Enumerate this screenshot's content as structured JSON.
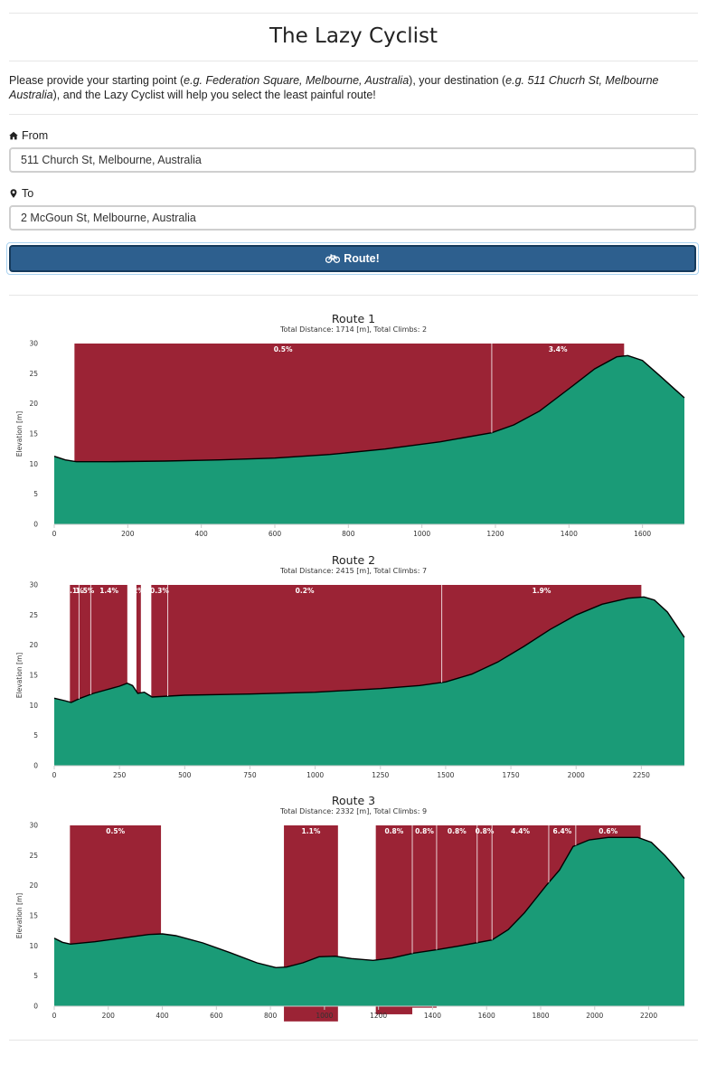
{
  "header": {
    "title": "The Lazy Cyclist"
  },
  "intro": {
    "p1": "Please provide your starting point (",
    "ex1": "e.g. Federation Square, Melbourne, Australia",
    "p2": "), your destination (",
    "ex2": "e.g. 511 Chucrh St, Melbourne Australia",
    "p3": "), and the Lazy Cyclist will help you select the least painful route!"
  },
  "form": {
    "from_label": "From",
    "from_value": "511 Church St, Melbourne, Australia",
    "to_label": "To",
    "to_value": "2 McGoun St, Melbourne, Australia",
    "route_label": "Route!"
  },
  "icons": {
    "from": "home-icon",
    "to": "map-marker-icon",
    "route": "bicycle-icon"
  },
  "colors": {
    "climb": "#9b2335",
    "terrain": "#1a9b77",
    "button": "#2d5f8e"
  },
  "chart_data": [
    {
      "type": "area",
      "title": "Route 1",
      "subtitle": "Total Distance: 1714 [m], Total Climbs: 2",
      "ylabel": "Elevation [m]",
      "xlim": [
        0,
        1714
      ],
      "ylim": [
        0,
        30
      ],
      "xticks": [
        0,
        200,
        400,
        600,
        800,
        1000,
        1200,
        1400,
        1600
      ],
      "yticks": [
        0,
        5,
        10,
        15,
        20,
        25,
        30
      ],
      "elevation": [
        [
          0,
          11.3
        ],
        [
          30,
          10.7
        ],
        [
          60,
          10.4
        ],
        [
          150,
          10.4
        ],
        [
          300,
          10.5
        ],
        [
          450,
          10.7
        ],
        [
          600,
          11.0
        ],
        [
          750,
          11.6
        ],
        [
          900,
          12.5
        ],
        [
          1050,
          13.7
        ],
        [
          1190,
          15.2
        ],
        [
          1250,
          16.5
        ],
        [
          1320,
          18.8
        ],
        [
          1400,
          22.5
        ],
        [
          1470,
          25.8
        ],
        [
          1530,
          27.8
        ],
        [
          1560,
          28.0
        ],
        [
          1600,
          27.2
        ],
        [
          1650,
          24.5
        ],
        [
          1690,
          22.3
        ],
        [
          1714,
          21.0
        ]
      ],
      "climbs": [
        {
          "start": 55,
          "end": 1190,
          "label": "0.5%"
        },
        {
          "start": 1190,
          "end": 1550,
          "label": "3.4%"
        }
      ]
    },
    {
      "type": "area",
      "title": "Route 2",
      "subtitle": "Total Distance: 2415 [m], Total Climbs: 7",
      "ylabel": "Elevation [m]",
      "xlim": [
        0,
        2415
      ],
      "ylim": [
        0,
        30
      ],
      "xticks": [
        0,
        250,
        500,
        750,
        1000,
        1250,
        1500,
        1750,
        2000,
        2250
      ],
      "yticks": [
        0,
        5,
        10,
        15,
        20,
        25,
        30
      ],
      "elevation": [
        [
          0,
          11.2
        ],
        [
          40,
          10.8
        ],
        [
          65,
          10.5
        ],
        [
          100,
          11.2
        ],
        [
          150,
          12.0
        ],
        [
          200,
          12.6
        ],
        [
          250,
          13.2
        ],
        [
          280,
          13.7
        ],
        [
          300,
          13.3
        ],
        [
          320,
          12.0
        ],
        [
          345,
          12.2
        ],
        [
          375,
          11.4
        ],
        [
          500,
          11.7
        ],
        [
          750,
          11.9
        ],
        [
          1000,
          12.2
        ],
        [
          1250,
          12.8
        ],
        [
          1400,
          13.3
        ],
        [
          1500,
          13.9
        ],
        [
          1600,
          15.2
        ],
        [
          1700,
          17.2
        ],
        [
          1800,
          19.8
        ],
        [
          1900,
          22.6
        ],
        [
          2000,
          25.0
        ],
        [
          2100,
          26.8
        ],
        [
          2200,
          27.8
        ],
        [
          2260,
          28.0
        ],
        [
          2300,
          27.5
        ],
        [
          2350,
          25.5
        ],
        [
          2415,
          21.3
        ]
      ],
      "climbs": [
        {
          "start": 60,
          "end": 95,
          "label": "1.1%"
        },
        {
          "start": 95,
          "end": 140,
          "label": "1.5%"
        },
        {
          "start": 140,
          "end": 280,
          "label": "1.4%"
        },
        {
          "start": 315,
          "end": 332,
          "label": "2%"
        },
        {
          "start": 372,
          "end": 435,
          "label": "0.3%"
        },
        {
          "start": 435,
          "end": 1485,
          "label": "0.2%"
        },
        {
          "start": 1485,
          "end": 2250,
          "label": "1.9%"
        }
      ]
    },
    {
      "type": "area",
      "title": "Route 3",
      "subtitle": "Total Distance: 2332 [m], Total Climbs: 9",
      "ylabel": "Elevation [m]",
      "xlim": [
        0,
        2332
      ],
      "ylim": [
        0,
        30
      ],
      "xticks": [
        0,
        200,
        400,
        600,
        800,
        1000,
        1200,
        1400,
        1600,
        1800,
        2000,
        2200
      ],
      "yticks": [
        0,
        5,
        10,
        15,
        20,
        25,
        30
      ],
      "elevation": [
        [
          0,
          11.3
        ],
        [
          30,
          10.6
        ],
        [
          60,
          10.3
        ],
        [
          150,
          10.7
        ],
        [
          250,
          11.3
        ],
        [
          350,
          11.9
        ],
        [
          400,
          12.0
        ],
        [
          450,
          11.7
        ],
        [
          550,
          10.5
        ],
        [
          650,
          8.9
        ],
        [
          750,
          7.2
        ],
        [
          820,
          6.4
        ],
        [
          860,
          6.5
        ],
        [
          920,
          7.2
        ],
        [
          980,
          8.2
        ],
        [
          1040,
          8.3
        ],
        [
          1100,
          7.9
        ],
        [
          1180,
          7.6
        ],
        [
          1250,
          8.0
        ],
        [
          1330,
          8.8
        ],
        [
          1420,
          9.4
        ],
        [
          1500,
          10.0
        ],
        [
          1560,
          10.5
        ],
        [
          1620,
          11.0
        ],
        [
          1680,
          12.7
        ],
        [
          1740,
          15.5
        ],
        [
          1820,
          20.0
        ],
        [
          1870,
          22.6
        ],
        [
          1920,
          26.5
        ],
        [
          1980,
          27.6
        ],
        [
          2050,
          28.0
        ],
        [
          2160,
          28.0
        ],
        [
          2210,
          27.2
        ],
        [
          2260,
          25.0
        ],
        [
          2300,
          23.0
        ],
        [
          2332,
          21.2
        ]
      ],
      "climbs": [
        {
          "start": 58,
          "end": 395,
          "label": "0.5%"
        },
        {
          "start": 850,
          "end": 1050,
          "label": "1.1%"
        },
        {
          "start": 1190,
          "end": 1325,
          "label": "0.8%"
        },
        {
          "start": 1325,
          "end": 1415,
          "label": "0.8%"
        },
        {
          "start": 1415,
          "end": 1565,
          "label": "0.8%"
        },
        {
          "start": 1565,
          "end": 1620,
          "label": "0.8%"
        },
        {
          "start": 1620,
          "end": 1830,
          "label": "4.4%"
        },
        {
          "start": 1830,
          "end": 1930,
          "label": "6.4%"
        },
        {
          "start": 1930,
          "end": 2170,
          "label": "0.6%"
        }
      ]
    }
  ]
}
